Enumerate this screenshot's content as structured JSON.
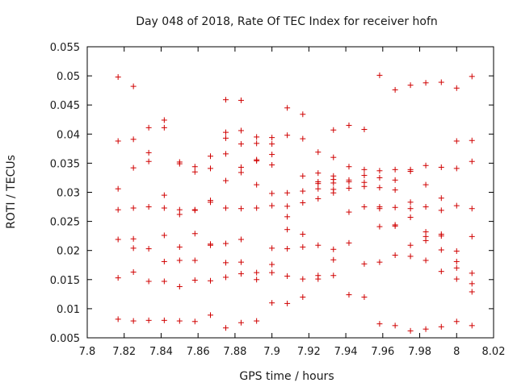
{
  "chart_data": {
    "type": "scatter",
    "title": "Day 048 of 2018, Rate Of TEC Index for receiver hofn",
    "xlabel": "GPS time / hours",
    "ylabel": "ROTI / TECUs",
    "xlim": [
      7.8,
      8.02
    ],
    "ylim": [
      0.005,
      0.055
    ],
    "xticks": [
      7.8,
      7.82,
      7.84,
      7.86,
      7.88,
      7.9,
      7.92,
      7.94,
      7.96,
      7.98,
      8,
      8.02
    ],
    "xtick_labels": [
      "7.8",
      "7.82",
      "7.84",
      "7.86",
      "7.88",
      "7.9",
      "7.92",
      "7.94",
      "7.96",
      "7.98",
      "8",
      "8.02"
    ],
    "yticks": [
      0.005,
      0.01,
      0.015,
      0.02,
      0.025,
      0.03,
      0.035,
      0.04,
      0.045,
      0.05,
      0.055
    ],
    "ytick_labels": [
      "0.005",
      "0.01",
      "0.015",
      "0.02",
      "0.025",
      "0.03",
      "0.035",
      "0.04",
      "0.045",
      "0.05",
      "0.055"
    ],
    "marker": "plus",
    "series": [
      {
        "name": "ROTI",
        "color": "#d00000",
        "points": [
          [
            7.8167,
            0.0498
          ],
          [
            7.8167,
            0.0388
          ],
          [
            7.8167,
            0.0306
          ],
          [
            7.8167,
            0.027
          ],
          [
            7.8167,
            0.0219
          ],
          [
            7.8167,
            0.0153
          ],
          [
            7.8167,
            0.0082
          ],
          [
            7.825,
            0.0482
          ],
          [
            7.825,
            0.0391
          ],
          [
            7.825,
            0.0342
          ],
          [
            7.825,
            0.0273
          ],
          [
            7.825,
            0.022
          ],
          [
            7.825,
            0.0204
          ],
          [
            7.825,
            0.0163
          ],
          [
            7.825,
            0.0079
          ],
          [
            7.8333,
            0.0411
          ],
          [
            7.8333,
            0.0368
          ],
          [
            7.8333,
            0.0353
          ],
          [
            7.8333,
            0.0275
          ],
          [
            7.8333,
            0.0203
          ],
          [
            7.8333,
            0.0147
          ],
          [
            7.8333,
            0.008
          ],
          [
            7.8417,
            0.0424
          ],
          [
            7.8417,
            0.0411
          ],
          [
            7.8417,
            0.0295
          ],
          [
            7.8417,
            0.0273
          ],
          [
            7.8417,
            0.0226
          ],
          [
            7.8417,
            0.0181
          ],
          [
            7.8417,
            0.0147
          ],
          [
            7.8417,
            0.008
          ],
          [
            7.85,
            0.0352
          ],
          [
            7.85,
            0.0349
          ],
          [
            7.85,
            0.027
          ],
          [
            7.85,
            0.0262
          ],
          [
            7.85,
            0.0206
          ],
          [
            7.85,
            0.0183
          ],
          [
            7.85,
            0.0138
          ],
          [
            7.85,
            0.0079
          ],
          [
            7.8583,
            0.0344
          ],
          [
            7.8583,
            0.0335
          ],
          [
            7.8583,
            0.027
          ],
          [
            7.8583,
            0.0269
          ],
          [
            7.8583,
            0.0229
          ],
          [
            7.8583,
            0.0183
          ],
          [
            7.8583,
            0.0149
          ],
          [
            7.8583,
            0.0078
          ],
          [
            7.8667,
            0.0362
          ],
          [
            7.8667,
            0.0341
          ],
          [
            7.8667,
            0.0286
          ],
          [
            7.8667,
            0.0283
          ],
          [
            7.8667,
            0.0211
          ],
          [
            7.8667,
            0.0209
          ],
          [
            7.8667,
            0.0148
          ],
          [
            7.8667,
            0.0089
          ],
          [
            7.875,
            0.0459
          ],
          [
            7.875,
            0.0403
          ],
          [
            7.875,
            0.0393
          ],
          [
            7.875,
            0.0366
          ],
          [
            7.875,
            0.032
          ],
          [
            7.875,
            0.0273
          ],
          [
            7.875,
            0.0212
          ],
          [
            7.875,
            0.0179
          ],
          [
            7.875,
            0.0154
          ],
          [
            7.875,
            0.0067
          ],
          [
            7.8833,
            0.0458
          ],
          [
            7.8833,
            0.0406
          ],
          [
            7.8833,
            0.0383
          ],
          [
            7.8833,
            0.0343
          ],
          [
            7.8833,
            0.0334
          ],
          [
            7.8833,
            0.0272
          ],
          [
            7.8833,
            0.0219
          ],
          [
            7.8833,
            0.018
          ],
          [
            7.8833,
            0.016
          ],
          [
            7.8833,
            0.0076
          ],
          [
            7.8917,
            0.0395
          ],
          [
            7.8917,
            0.0384
          ],
          [
            7.8917,
            0.0356
          ],
          [
            7.8917,
            0.0354
          ],
          [
            7.8917,
            0.0313
          ],
          [
            7.8917,
            0.0273
          ],
          [
            7.8917,
            0.0162
          ],
          [
            7.8917,
            0.015
          ],
          [
            7.8917,
            0.0079
          ],
          [
            7.9,
            0.0394
          ],
          [
            7.9,
            0.0383
          ],
          [
            7.9,
            0.0365
          ],
          [
            7.9,
            0.0347
          ],
          [
            7.9,
            0.0298
          ],
          [
            7.9,
            0.0277
          ],
          [
            7.9,
            0.0204
          ],
          [
            7.9,
            0.0176
          ],
          [
            7.9,
            0.0162
          ],
          [
            7.9,
            0.011
          ],
          [
            7.9083,
            0.0445
          ],
          [
            7.9083,
            0.0398
          ],
          [
            7.9083,
            0.0299
          ],
          [
            7.9083,
            0.0276
          ],
          [
            7.9083,
            0.0258
          ],
          [
            7.9083,
            0.0236
          ],
          [
            7.9083,
            0.0203
          ],
          [
            7.9083,
            0.0156
          ],
          [
            7.9083,
            0.0109
          ],
          [
            7.9167,
            0.0434
          ],
          [
            7.9167,
            0.0392
          ],
          [
            7.9167,
            0.0328
          ],
          [
            7.9167,
            0.0302
          ],
          [
            7.9167,
            0.0282
          ],
          [
            7.9167,
            0.0228
          ],
          [
            7.9167,
            0.0206
          ],
          [
            7.9167,
            0.0151
          ],
          [
            7.9167,
            0.012
          ],
          [
            7.925,
            0.0369
          ],
          [
            7.925,
            0.0333
          ],
          [
            7.925,
            0.0318
          ],
          [
            7.925,
            0.0315
          ],
          [
            7.925,
            0.0306
          ],
          [
            7.925,
            0.0289
          ],
          [
            7.925,
            0.0209
          ],
          [
            7.925,
            0.0157
          ],
          [
            7.925,
            0.0151
          ],
          [
            7.9333,
            0.0407
          ],
          [
            7.9333,
            0.036
          ],
          [
            7.9333,
            0.0328
          ],
          [
            7.9333,
            0.0322
          ],
          [
            7.9333,
            0.0316
          ],
          [
            7.9333,
            0.0305
          ],
          [
            7.9333,
            0.0299
          ],
          [
            7.9333,
            0.0202
          ],
          [
            7.9333,
            0.0184
          ],
          [
            7.9333,
            0.0157
          ],
          [
            7.9417,
            0.0415
          ],
          [
            7.9417,
            0.0344
          ],
          [
            7.9417,
            0.0321
          ],
          [
            7.9417,
            0.0318
          ],
          [
            7.9417,
            0.0307
          ],
          [
            7.9417,
            0.0266
          ],
          [
            7.9417,
            0.0213
          ],
          [
            7.9417,
            0.0124
          ],
          [
            7.95,
            0.0408
          ],
          [
            7.95,
            0.0339
          ],
          [
            7.95,
            0.0329
          ],
          [
            7.95,
            0.0317
          ],
          [
            7.95,
            0.031
          ],
          [
            7.95,
            0.0275
          ],
          [
            7.95,
            0.0177
          ],
          [
            7.95,
            0.012
          ],
          [
            7.9583,
            0.0501
          ],
          [
            7.9583,
            0.0337
          ],
          [
            7.9583,
            0.0325
          ],
          [
            7.9583,
            0.0308
          ],
          [
            7.9583,
            0.0275
          ],
          [
            7.9583,
            0.0272
          ],
          [
            7.9583,
            0.0241
          ],
          [
            7.9583,
            0.018
          ],
          [
            7.9583,
            0.0074
          ],
          [
            7.9667,
            0.0476
          ],
          [
            7.9667,
            0.0339
          ],
          [
            7.9667,
            0.0321
          ],
          [
            7.9667,
            0.0304
          ],
          [
            7.9667,
            0.0274
          ],
          [
            7.9667,
            0.0244
          ],
          [
            7.9667,
            0.0242
          ],
          [
            7.9667,
            0.0192
          ],
          [
            7.9667,
            0.0071
          ],
          [
            7.975,
            0.0484
          ],
          [
            7.975,
            0.0339
          ],
          [
            7.975,
            0.0336
          ],
          [
            7.975,
            0.0283
          ],
          [
            7.975,
            0.0272
          ],
          [
            7.975,
            0.0257
          ],
          [
            7.975,
            0.0209
          ],
          [
            7.975,
            0.019
          ],
          [
            7.975,
            0.0062
          ],
          [
            7.9833,
            0.0488
          ],
          [
            7.9833,
            0.0346
          ],
          [
            7.9833,
            0.0313
          ],
          [
            7.9833,
            0.0275
          ],
          [
            7.9833,
            0.0232
          ],
          [
            7.9833,
            0.0224
          ],
          [
            7.9833,
            0.0217
          ],
          [
            7.9833,
            0.0183
          ],
          [
            7.9833,
            0.0065
          ],
          [
            7.9917,
            0.0489
          ],
          [
            7.9917,
            0.0343
          ],
          [
            7.9917,
            0.029
          ],
          [
            7.9917,
            0.0269
          ],
          [
            7.9917,
            0.0228
          ],
          [
            7.9917,
            0.0225
          ],
          [
            7.9917,
            0.0201
          ],
          [
            7.9917,
            0.0164
          ],
          [
            7.9917,
            0.0069
          ],
          [
            8.0,
            0.0479
          ],
          [
            8.0,
            0.0388
          ],
          [
            8.0,
            0.0341
          ],
          [
            8.0,
            0.0277
          ],
          [
            8.0,
            0.0199
          ],
          [
            8.0,
            0.0181
          ],
          [
            8.0,
            0.017
          ],
          [
            8.0,
            0.0151
          ],
          [
            8.0,
            0.0078
          ],
          [
            8.0083,
            0.0499
          ],
          [
            8.0083,
            0.0389
          ],
          [
            8.0083,
            0.0353
          ],
          [
            8.0083,
            0.0272
          ],
          [
            8.0083,
            0.0224
          ],
          [
            8.0083,
            0.0161
          ],
          [
            8.0083,
            0.0143
          ],
          [
            8.0083,
            0.0129
          ],
          [
            8.0083,
            0.0071
          ]
        ]
      }
    ]
  }
}
